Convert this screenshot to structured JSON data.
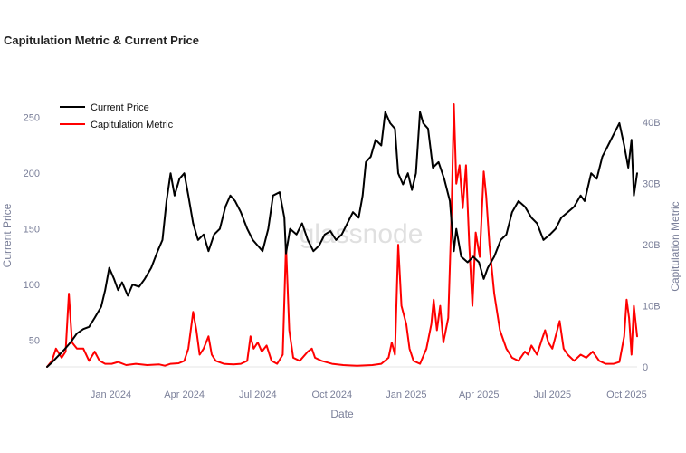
{
  "title": "Capitulation Metric & Current Price",
  "watermark": "glassnode",
  "chart_data": {
    "type": "line",
    "title": "Capitulation Metric & Current Price",
    "xlabel": "Date",
    "ylabel_left": "Current Price",
    "ylabel_right": "Capitulation Metric",
    "x_range": [
      "2023-10-14",
      "2025-10-14"
    ],
    "x_ticks": [
      "Jan 2024",
      "Apr 2024",
      "Jul 2024",
      "Oct 2024",
      "Jan 2025",
      "Apr 2025",
      "Jul 2025",
      "Oct 2025"
    ],
    "x_tick_dates": [
      "2024-01-01",
      "2024-04-01",
      "2024-07-01",
      "2024-10-01",
      "2025-01-01",
      "2025-04-01",
      "2025-07-01",
      "2025-10-01"
    ],
    "y_left_ticks": [
      "50",
      "100",
      "150",
      "200",
      "250"
    ],
    "y_left_tick_values": [
      50,
      100,
      150,
      200,
      250
    ],
    "y_left_range": [
      26,
      262
    ],
    "y_right_ticks": [
      "0",
      "10B",
      "20B",
      "30B",
      "40B"
    ],
    "y_right_tick_values": [
      0,
      10,
      20,
      30,
      40
    ],
    "y_right_range": [
      0,
      43
    ],
    "y_right_unit": "B",
    "legend_position": "top-left",
    "grid": false,
    "series": [
      {
        "name": "Current Price",
        "axis": "left",
        "color": "#000000",
        "points": [
          [
            "2023-10-14",
            26
          ],
          [
            "2023-10-20",
            30
          ],
          [
            "2023-10-28",
            36
          ],
          [
            "2023-11-05",
            42
          ],
          [
            "2023-11-12",
            48
          ],
          [
            "2023-11-20",
            56
          ],
          [
            "2023-11-28",
            60
          ],
          [
            "2023-12-05",
            62
          ],
          [
            "2023-12-12",
            70
          ],
          [
            "2023-12-20",
            80
          ],
          [
            "2023-12-25",
            95
          ],
          [
            "2023-12-30",
            115
          ],
          [
            "2024-01-05",
            105
          ],
          [
            "2024-01-10",
            95
          ],
          [
            "2024-01-15",
            102
          ],
          [
            "2024-01-22",
            90
          ],
          [
            "2024-01-28",
            100
          ],
          [
            "2024-02-05",
            98
          ],
          [
            "2024-02-12",
            105
          ],
          [
            "2024-02-20",
            115
          ],
          [
            "2024-02-28",
            130
          ],
          [
            "2024-03-05",
            140
          ],
          [
            "2024-03-10",
            175
          ],
          [
            "2024-03-15",
            200
          ],
          [
            "2024-03-20",
            180
          ],
          [
            "2024-03-26",
            195
          ],
          [
            "2024-04-01",
            200
          ],
          [
            "2024-04-06",
            180
          ],
          [
            "2024-04-12",
            155
          ],
          [
            "2024-04-18",
            140
          ],
          [
            "2024-04-25",
            145
          ],
          [
            "2024-05-01",
            130
          ],
          [
            "2024-05-08",
            145
          ],
          [
            "2024-05-15",
            150
          ],
          [
            "2024-05-22",
            170
          ],
          [
            "2024-05-28",
            180
          ],
          [
            "2024-06-03",
            175
          ],
          [
            "2024-06-10",
            165
          ],
          [
            "2024-06-18",
            150
          ],
          [
            "2024-06-25",
            140
          ],
          [
            "2024-07-01",
            135
          ],
          [
            "2024-07-07",
            130
          ],
          [
            "2024-07-14",
            150
          ],
          [
            "2024-07-20",
            180
          ],
          [
            "2024-07-28",
            183
          ],
          [
            "2024-08-03",
            160
          ],
          [
            "2024-08-05",
            128
          ],
          [
            "2024-08-10",
            150
          ],
          [
            "2024-08-18",
            145
          ],
          [
            "2024-08-25",
            155
          ],
          [
            "2024-09-01",
            140
          ],
          [
            "2024-09-08",
            130
          ],
          [
            "2024-09-15",
            135
          ],
          [
            "2024-09-22",
            145
          ],
          [
            "2024-09-29",
            148
          ],
          [
            "2024-10-06",
            140
          ],
          [
            "2024-10-13",
            145
          ],
          [
            "2024-10-20",
            155
          ],
          [
            "2024-10-27",
            165
          ],
          [
            "2024-11-03",
            160
          ],
          [
            "2024-11-08",
            180
          ],
          [
            "2024-11-12",
            210
          ],
          [
            "2024-11-18",
            215
          ],
          [
            "2024-11-24",
            230
          ],
          [
            "2024-12-01",
            225
          ],
          [
            "2024-12-06",
            255
          ],
          [
            "2024-12-12",
            245
          ],
          [
            "2024-12-18",
            240
          ],
          [
            "2024-12-22",
            200
          ],
          [
            "2024-12-28",
            190
          ],
          [
            "2025-01-03",
            200
          ],
          [
            "2025-01-08",
            185
          ],
          [
            "2025-01-13",
            200
          ],
          [
            "2025-01-18",
            255
          ],
          [
            "2025-01-22",
            245
          ],
          [
            "2025-01-28",
            240
          ],
          [
            "2025-02-03",
            205
          ],
          [
            "2025-02-10",
            210
          ],
          [
            "2025-02-17",
            195
          ],
          [
            "2025-02-24",
            175
          ],
          [
            "2025-03-01",
            130
          ],
          [
            "2025-03-04",
            150
          ],
          [
            "2025-03-10",
            125
          ],
          [
            "2025-03-18",
            120
          ],
          [
            "2025-03-25",
            125
          ],
          [
            "2025-04-01",
            120
          ],
          [
            "2025-04-07",
            105
          ],
          [
            "2025-04-12",
            115
          ],
          [
            "2025-04-20",
            125
          ],
          [
            "2025-04-28",
            140
          ],
          [
            "2025-05-05",
            145
          ],
          [
            "2025-05-12",
            165
          ],
          [
            "2025-05-20",
            175
          ],
          [
            "2025-05-28",
            170
          ],
          [
            "2025-06-05",
            160
          ],
          [
            "2025-06-12",
            155
          ],
          [
            "2025-06-20",
            140
          ],
          [
            "2025-06-28",
            145
          ],
          [
            "2025-07-05",
            150
          ],
          [
            "2025-07-12",
            160
          ],
          [
            "2025-07-20",
            165
          ],
          [
            "2025-07-28",
            170
          ],
          [
            "2025-08-05",
            180
          ],
          [
            "2025-08-10",
            175
          ],
          [
            "2025-08-18",
            200
          ],
          [
            "2025-08-25",
            195
          ],
          [
            "2025-09-01",
            215
          ],
          [
            "2025-09-08",
            225
          ],
          [
            "2025-09-15",
            235
          ],
          [
            "2025-09-22",
            245
          ],
          [
            "2025-09-28",
            225
          ],
          [
            "2025-10-03",
            205
          ],
          [
            "2025-10-07",
            230
          ],
          [
            "2025-10-10",
            180
          ],
          [
            "2025-10-14",
            200
          ]
        ]
      },
      {
        "name": "Capitulation Metric",
        "axis": "right",
        "color": "#ff0000",
        "points": [
          [
            "2023-10-14",
            0
          ],
          [
            "2023-10-20",
            1
          ],
          [
            "2023-10-25",
            3
          ],
          [
            "2023-11-01",
            1.5
          ],
          [
            "2023-11-06",
            2.5
          ],
          [
            "2023-11-10",
            12
          ],
          [
            "2023-11-14",
            4
          ],
          [
            "2023-11-20",
            3
          ],
          [
            "2023-11-28",
            3
          ],
          [
            "2023-12-05",
            1
          ],
          [
            "2023-12-12",
            2.5
          ],
          [
            "2023-12-18",
            1
          ],
          [
            "2023-12-25",
            0.5
          ],
          [
            "2024-01-02",
            0.5
          ],
          [
            "2024-01-10",
            0.8
          ],
          [
            "2024-01-20",
            0.3
          ],
          [
            "2024-02-01",
            0.5
          ],
          [
            "2024-02-15",
            0.3
          ],
          [
            "2024-03-01",
            0.4
          ],
          [
            "2024-03-08",
            0.2
          ],
          [
            "2024-03-15",
            0.5
          ],
          [
            "2024-03-25",
            0.6
          ],
          [
            "2024-04-01",
            1
          ],
          [
            "2024-04-06",
            3
          ],
          [
            "2024-04-12",
            9
          ],
          [
            "2024-04-16",
            6
          ],
          [
            "2024-04-20",
            2
          ],
          [
            "2024-04-25",
            3
          ],
          [
            "2024-05-01",
            5
          ],
          [
            "2024-05-05",
            2
          ],
          [
            "2024-05-10",
            1
          ],
          [
            "2024-05-20",
            0.5
          ],
          [
            "2024-06-01",
            0.4
          ],
          [
            "2024-06-10",
            0.5
          ],
          [
            "2024-06-18",
            1
          ],
          [
            "2024-06-22",
            5
          ],
          [
            "2024-06-26",
            3
          ],
          [
            "2024-07-01",
            4
          ],
          [
            "2024-07-06",
            2.5
          ],
          [
            "2024-07-12",
            3.5
          ],
          [
            "2024-07-18",
            1
          ],
          [
            "2024-07-25",
            0.5
          ],
          [
            "2024-08-01",
            2
          ],
          [
            "2024-08-05",
            20
          ],
          [
            "2024-08-09",
            6
          ],
          [
            "2024-08-14",
            1.5
          ],
          [
            "2024-08-22",
            1
          ],
          [
            "2024-09-01",
            2.5
          ],
          [
            "2024-09-06",
            3
          ],
          [
            "2024-09-10",
            1.5
          ],
          [
            "2024-09-18",
            1
          ],
          [
            "2024-10-01",
            0.5
          ],
          [
            "2024-10-15",
            0.3
          ],
          [
            "2024-11-01",
            0.2
          ],
          [
            "2024-11-20",
            0.3
          ],
          [
            "2024-12-01",
            0.5
          ],
          [
            "2024-12-10",
            1.5
          ],
          [
            "2024-12-14",
            4
          ],
          [
            "2024-12-18",
            2
          ],
          [
            "2024-12-22",
            20
          ],
          [
            "2024-12-26",
            10
          ],
          [
            "2025-01-01",
            7
          ],
          [
            "2025-01-05",
            3
          ],
          [
            "2025-01-10",
            1
          ],
          [
            "2025-01-18",
            0.5
          ],
          [
            "2025-01-26",
            3
          ],
          [
            "2025-02-01",
            7
          ],
          [
            "2025-02-04",
            11
          ],
          [
            "2025-02-08",
            6
          ],
          [
            "2025-02-12",
            10
          ],
          [
            "2025-02-16",
            4
          ],
          [
            "2025-02-22",
            8
          ],
          [
            "2025-02-26",
            25
          ],
          [
            "2025-03-01",
            43
          ],
          [
            "2025-03-04",
            30
          ],
          [
            "2025-03-08",
            33
          ],
          [
            "2025-03-12",
            26
          ],
          [
            "2025-03-16",
            33
          ],
          [
            "2025-03-20",
            20
          ],
          [
            "2025-03-24",
            10
          ],
          [
            "2025-03-28",
            22
          ],
          [
            "2025-04-02",
            18
          ],
          [
            "2025-04-07",
            32
          ],
          [
            "2025-04-10",
            28
          ],
          [
            "2025-04-14",
            20
          ],
          [
            "2025-04-20",
            12
          ],
          [
            "2025-04-27",
            6
          ],
          [
            "2025-05-05",
            3
          ],
          [
            "2025-05-12",
            1.5
          ],
          [
            "2025-05-20",
            1
          ],
          [
            "2025-05-28",
            2.5
          ],
          [
            "2025-06-01",
            2
          ],
          [
            "2025-06-05",
            3.5
          ],
          [
            "2025-06-12",
            2
          ],
          [
            "2025-06-18",
            4.5
          ],
          [
            "2025-06-22",
            6
          ],
          [
            "2025-06-26",
            4
          ],
          [
            "2025-07-01",
            3
          ],
          [
            "2025-07-05",
            5
          ],
          [
            "2025-07-10",
            7.5
          ],
          [
            "2025-07-15",
            3
          ],
          [
            "2025-07-20",
            2
          ],
          [
            "2025-07-28",
            1
          ],
          [
            "2025-08-05",
            2
          ],
          [
            "2025-08-12",
            1.5
          ],
          [
            "2025-08-20",
            2.5
          ],
          [
            "2025-08-28",
            1
          ],
          [
            "2025-09-05",
            0.5
          ],
          [
            "2025-09-15",
            0.5
          ],
          [
            "2025-09-22",
            0.8
          ],
          [
            "2025-09-28",
            5
          ],
          [
            "2025-10-01",
            11
          ],
          [
            "2025-10-04",
            8
          ],
          [
            "2025-10-07",
            2
          ],
          [
            "2025-10-10",
            10
          ],
          [
            "2025-10-14",
            5
          ]
        ]
      }
    ]
  }
}
